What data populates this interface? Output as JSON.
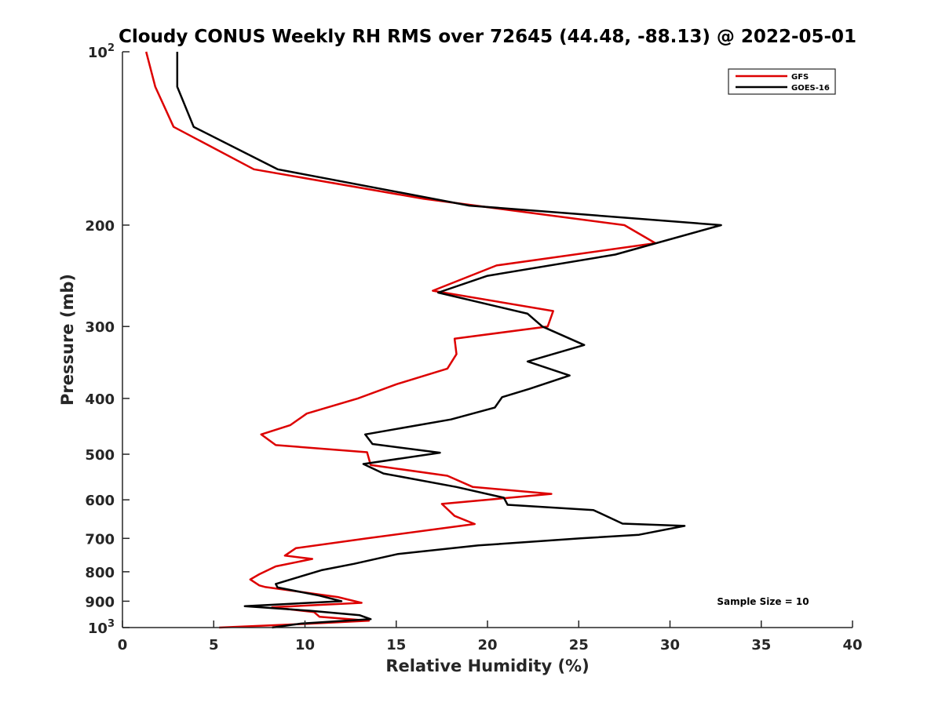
{
  "chart_data": {
    "type": "line",
    "title": "Cloudy CONUS Weekly RH RMS over 72645 (44.48, -88.13) @ 2022-05-01",
    "xlabel": "Relative Humidity (%)",
    "ylabel": "Pressure (mb)",
    "xlim": [
      0,
      40
    ],
    "ylim": [
      100,
      1000
    ],
    "y_scale": "log",
    "y_reversed": true,
    "x_ticks": [
      "0",
      "5",
      "10",
      "15",
      "20",
      "25",
      "30",
      "35",
      "40"
    ],
    "y_ticks": [
      {
        "value": 100,
        "base": "10",
        "exp": "2"
      },
      {
        "value": 200,
        "label": "200"
      },
      {
        "value": 300,
        "label": "300"
      },
      {
        "value": 400,
        "label": "400"
      },
      {
        "value": 500,
        "label": "500"
      },
      {
        "value": 600,
        "label": "600"
      },
      {
        "value": 700,
        "label": "700"
      },
      {
        "value": 800,
        "label": "800"
      },
      {
        "value": 900,
        "label": "900"
      },
      {
        "value": 1000,
        "base": "10",
        "exp": "3"
      }
    ],
    "grid": false,
    "legend_position": "top-right",
    "annotation": "Sample Size = 10",
    "series": [
      {
        "name": "GFS",
        "color": "#dd0000",
        "points": [
          [
            1.3,
            100
          ],
          [
            1.8,
            115
          ],
          [
            2.8,
            135
          ],
          [
            7.2,
            160
          ],
          [
            16.5,
            180
          ],
          [
            27.5,
            200
          ],
          [
            29.2,
            215
          ],
          [
            20.5,
            235
          ],
          [
            17.0,
            260
          ],
          [
            23.6,
            282
          ],
          [
            23.3,
            300
          ],
          [
            18.2,
            315
          ],
          [
            18.3,
            335
          ],
          [
            17.8,
            355
          ],
          [
            15.0,
            378
          ],
          [
            12.9,
            400
          ],
          [
            10.1,
            425
          ],
          [
            9.2,
            445
          ],
          [
            7.6,
            462
          ],
          [
            8.4,
            482
          ],
          [
            13.4,
            496
          ],
          [
            13.6,
            522
          ],
          [
            17.8,
            545
          ],
          [
            19.2,
            570
          ],
          [
            23.5,
            586
          ],
          [
            17.5,
            610
          ],
          [
            18.2,
            640
          ],
          [
            19.3,
            661
          ],
          [
            13.4,
            700
          ],
          [
            9.5,
            728
          ],
          [
            8.9,
            750
          ],
          [
            10.4,
            760
          ],
          [
            8.4,
            783
          ],
          [
            7.5,
            808
          ],
          [
            7.0,
            825
          ],
          [
            7.5,
            845
          ],
          [
            7.8,
            850
          ],
          [
            11.8,
            885
          ],
          [
            13.1,
            906
          ],
          [
            8.2,
            922
          ],
          [
            10.5,
            940
          ],
          [
            10.8,
            958
          ],
          [
            13.5,
            973
          ],
          [
            10.1,
            985
          ],
          [
            5.3,
            1000
          ]
        ]
      },
      {
        "name": "GOES-16",
        "color": "#000000",
        "points": [
          [
            3.0,
            100
          ],
          [
            3.0,
            115
          ],
          [
            3.9,
            135
          ],
          [
            8.5,
            160
          ],
          [
            19.0,
            185
          ],
          [
            32.8,
            200
          ],
          [
            27.0,
            225
          ],
          [
            20.0,
            245
          ],
          [
            17.3,
            262
          ],
          [
            22.2,
            285
          ],
          [
            23.0,
            300
          ],
          [
            25.3,
            323
          ],
          [
            22.2,
            345
          ],
          [
            24.5,
            365
          ],
          [
            22.3,
            385
          ],
          [
            20.8,
            398
          ],
          [
            20.4,
            415
          ],
          [
            18.0,
            435
          ],
          [
            13.3,
            462
          ],
          [
            13.7,
            480
          ],
          [
            17.4,
            497
          ],
          [
            13.2,
            520
          ],
          [
            14.3,
            540
          ],
          [
            18.3,
            570
          ],
          [
            20.9,
            595
          ],
          [
            21.1,
            612
          ],
          [
            25.8,
            625
          ],
          [
            27.4,
            660
          ],
          [
            30.8,
            666
          ],
          [
            28.3,
            690
          ],
          [
            25.1,
            700
          ],
          [
            19.5,
            720
          ],
          [
            15.1,
            745
          ],
          [
            12.7,
            775
          ],
          [
            10.9,
            795
          ],
          [
            9.5,
            820
          ],
          [
            8.4,
            840
          ],
          [
            8.5,
            852
          ],
          [
            10.8,
            880
          ],
          [
            12.0,
            900
          ],
          [
            6.7,
            918
          ],
          [
            10.3,
            935
          ],
          [
            13.0,
            952
          ],
          [
            13.6,
            967
          ],
          [
            9.8,
            984
          ],
          [
            8.2,
            1000
          ]
        ]
      }
    ]
  }
}
